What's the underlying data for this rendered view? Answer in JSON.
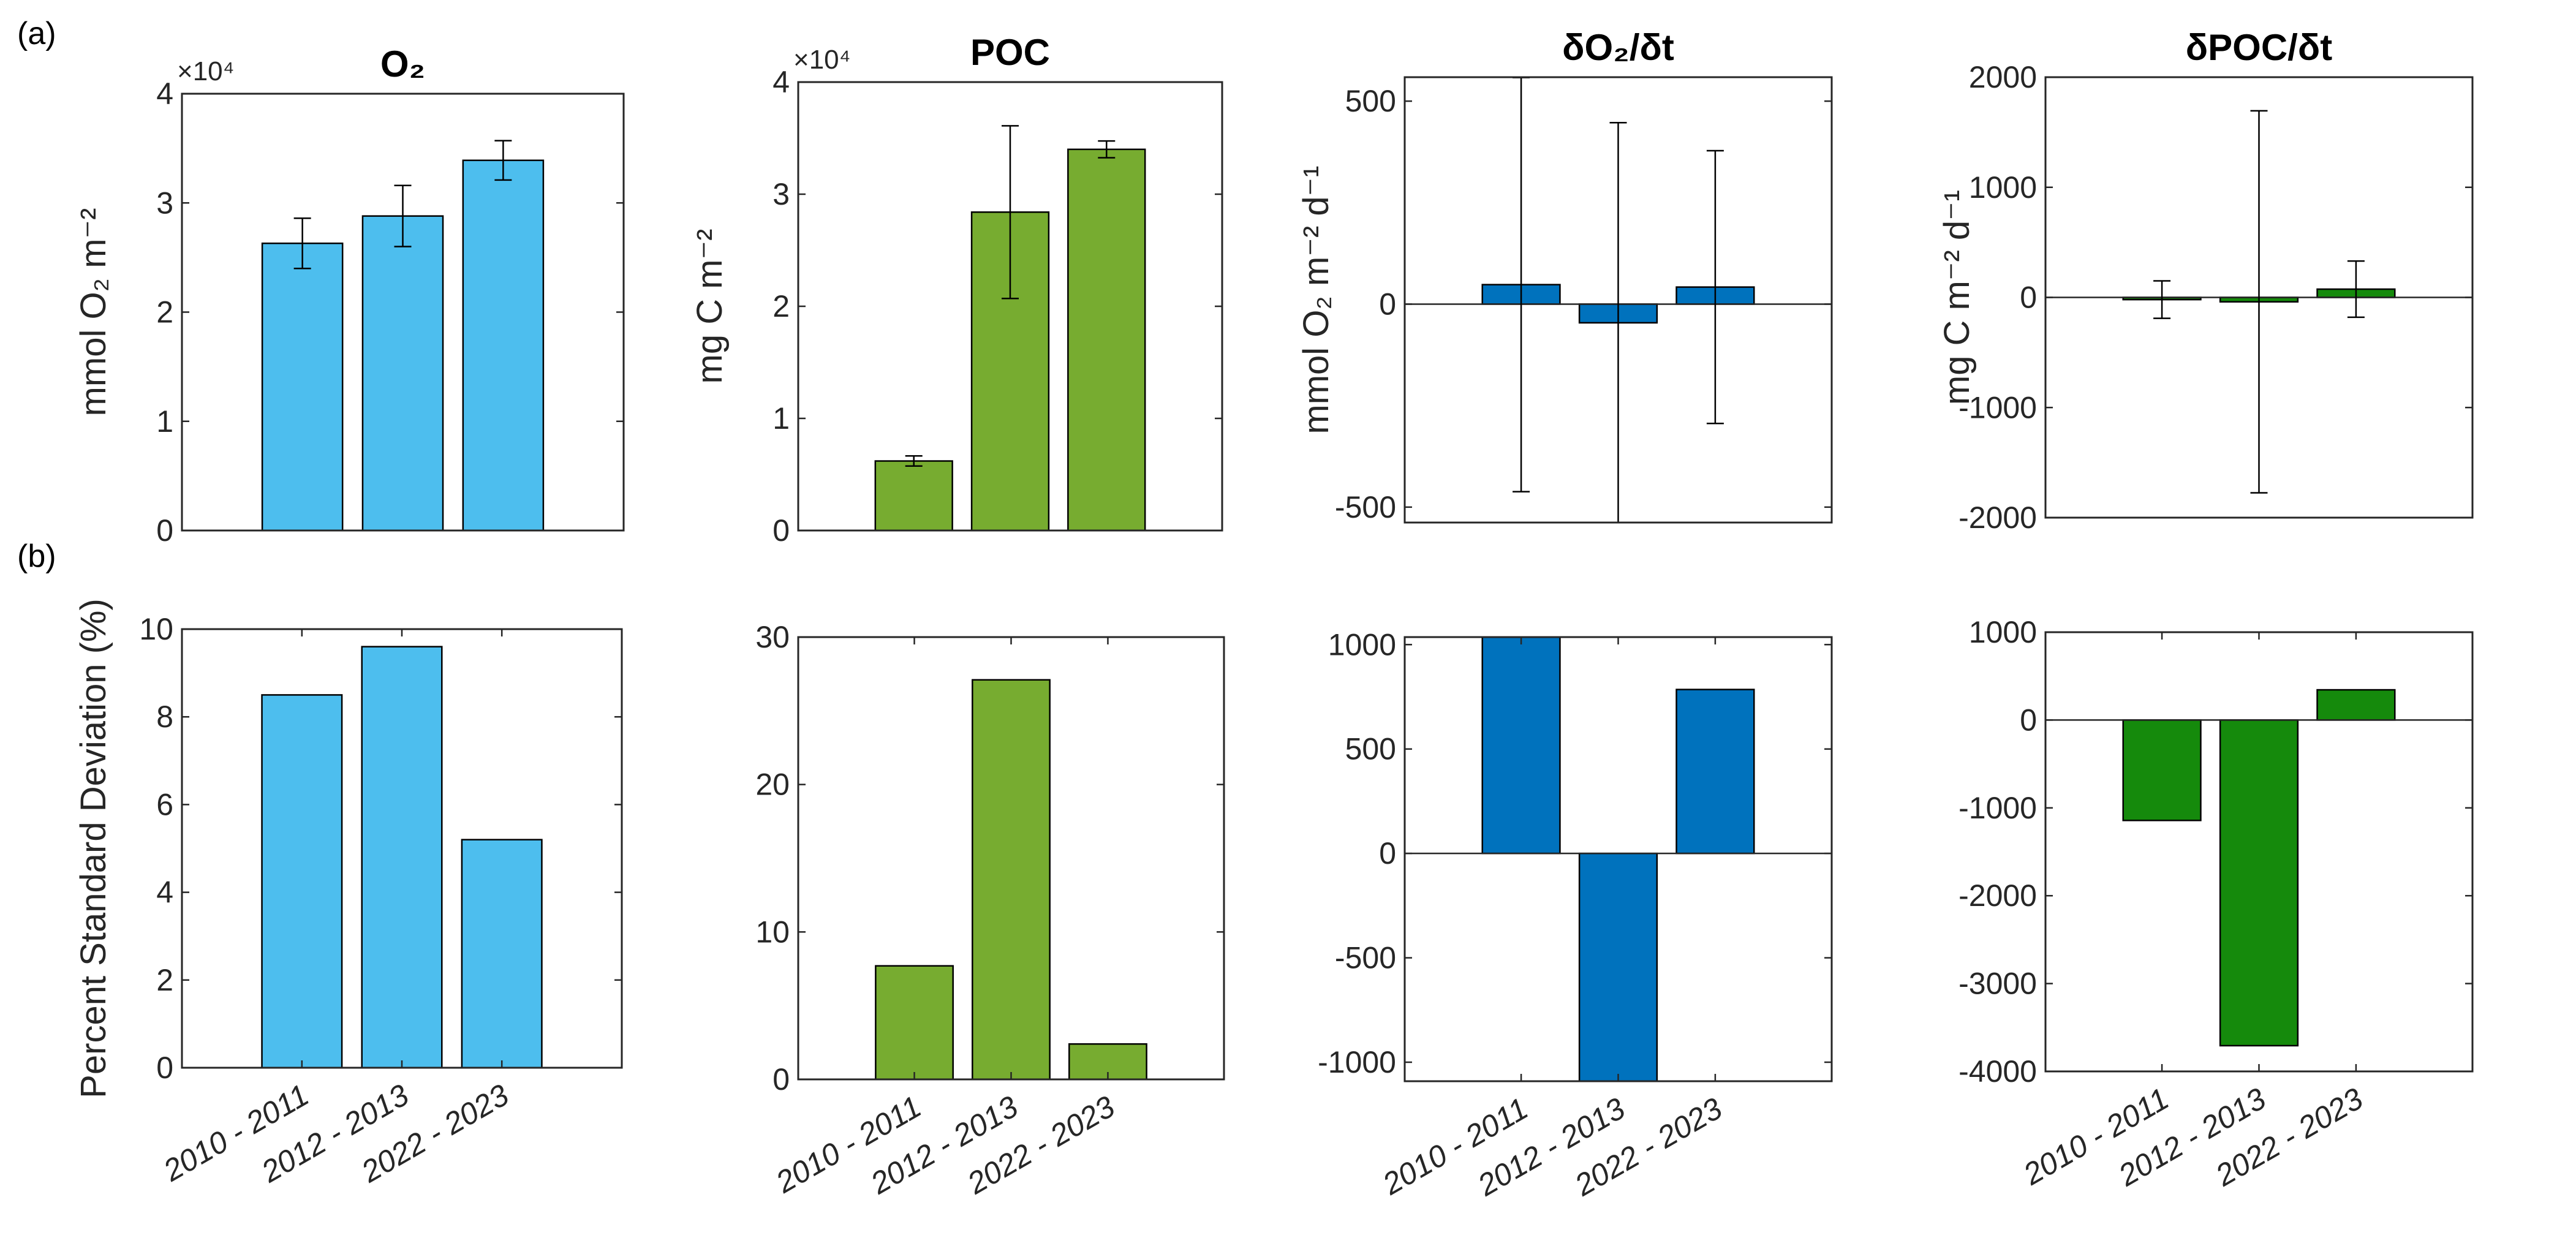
{
  "panel_labels": [
    "(a)",
    "(b)"
  ],
  "chart_data": [
    {
      "id": "a1",
      "type": "bar",
      "title": "O₂",
      "ylabel": "mmol O₂ m⁻²",
      "exponent_label": "×10⁴",
      "categories": [
        "2010 - 2011",
        "2012 - 2013",
        "2022 - 2023"
      ],
      "show_xticklabels": false,
      "values": [
        26300,
        28800,
        33900
      ],
      "errors": [
        2300,
        2800,
        1800
      ],
      "ylim": [
        0,
        40000
      ],
      "yticks": [
        0,
        10000,
        20000,
        30000,
        40000
      ],
      "yticklabels": [
        "0",
        "1",
        "2",
        "3",
        "4"
      ],
      "color": "#4DBEEE",
      "zero_line": false
    },
    {
      "id": "a2",
      "type": "bar",
      "title": "POC",
      "ylabel": "mg C m⁻²",
      "exponent_label": "×10⁴",
      "categories": [
        "2010 - 2011",
        "2012 - 2013",
        "2022 - 2023"
      ],
      "show_xticklabels": false,
      "values": [
        6200,
        28400,
        34000
      ],
      "errors": [
        450,
        7700,
        750
      ],
      "ylim": [
        0,
        40000
      ],
      "yticks": [
        0,
        10000,
        20000,
        30000,
        40000
      ],
      "yticklabels": [
        "0",
        "1",
        "2",
        "3",
        "4"
      ],
      "color": "#77AC30",
      "zero_line": false
    },
    {
      "id": "a3",
      "type": "bar",
      "title": "δO₂/δt",
      "ylabel": "mmol O₂ m⁻² d⁻¹",
      "exponent_label": "",
      "categories": [
        "2010 - 2011",
        "2012 - 2013",
        "2022 - 2023"
      ],
      "show_xticklabels": false,
      "values": [
        48,
        -46,
        42
      ],
      "errors": [
        510,
        493,
        336
      ],
      "ylim": [
        -538,
        559
      ],
      "yticks": [
        -500,
        0,
        500
      ],
      "yticklabels": [
        "-500",
        "0",
        "500"
      ],
      "color": "#0072BD",
      "zero_line": true
    },
    {
      "id": "a4",
      "type": "bar",
      "title": "δPOC/δt",
      "ylabel": "mg C m⁻² d⁻¹",
      "exponent_label": "",
      "categories": [
        "2010 - 2011",
        "2012 - 2013",
        "2022 - 2023"
      ],
      "show_xticklabels": false,
      "values": [
        -20,
        -40,
        75
      ],
      "errors": [
        170,
        1735,
        255
      ],
      "ylim": [
        -2000,
        2000
      ],
      "yticks": [
        -2000,
        -1000,
        0,
        1000,
        2000
      ],
      "yticklabels": [
        "-2000",
        "-1000",
        "0",
        "1000",
        "2000"
      ],
      "color": "#158A0C",
      "zero_line": true
    },
    {
      "id": "b1",
      "type": "bar",
      "title": "",
      "ylabel": "Percent Standard Deviation (%)",
      "exponent_label": "",
      "categories": [
        "2010 - 2011",
        "2012 - 2013",
        "2022 - 2023"
      ],
      "show_xticklabels": true,
      "values": [
        8.5,
        9.6,
        5.2
      ],
      "errors": [],
      "ylim": [
        0,
        10
      ],
      "yticks": [
        0,
        2,
        4,
        6,
        8,
        10
      ],
      "yticklabels": [
        "0",
        "2",
        "4",
        "6",
        "8",
        "10"
      ],
      "color": "#4DBEEE",
      "zero_line": false
    },
    {
      "id": "b2",
      "type": "bar",
      "title": "",
      "ylabel": "",
      "exponent_label": "",
      "categories": [
        "2010 - 2011",
        "2012 - 2013",
        "2022 - 2023"
      ],
      "show_xticklabels": true,
      "values": [
        7.7,
        27.1,
        2.4
      ],
      "errors": [],
      "ylim": [
        0,
        30
      ],
      "yticks": [
        0,
        10,
        20,
        30
      ],
      "yticklabels": [
        "0",
        "10",
        "20",
        "30"
      ],
      "color": "#77AC30",
      "zero_line": false
    },
    {
      "id": "b3",
      "type": "bar",
      "title": "",
      "ylabel": "",
      "exponent_label": "",
      "categories": [
        "2010 - 2011",
        "2012 - 2013",
        "2022 - 2023"
      ],
      "show_xticklabels": true,
      "values": [
        1100,
        -1100,
        785
      ],
      "errors": [],
      "ylim": [
        -1091,
        1036
      ],
      "yticks": [
        -1000,
        -500,
        0,
        500,
        1000
      ],
      "yticklabels": [
        "-1000",
        "-500",
        "0",
        "500",
        "1000"
      ],
      "color": "#0072BD",
      "zero_line": true
    },
    {
      "id": "b4",
      "type": "bar",
      "title": "",
      "ylabel": "",
      "exponent_label": "",
      "categories": [
        "2010 - 2011",
        "2012 - 2013",
        "2022 - 2023"
      ],
      "show_xticklabels": true,
      "values": [
        -1143,
        -3707,
        344
      ],
      "errors": [],
      "ylim": [
        -4000,
        1000
      ],
      "yticks": [
        -4000,
        -3000,
        -2000,
        -1000,
        0,
        1000
      ],
      "yticklabels": [
        "-4000",
        "-3000",
        "-2000",
        "-1000",
        "0",
        "1000"
      ],
      "color": "#158A0C",
      "zero_line": true
    }
  ]
}
